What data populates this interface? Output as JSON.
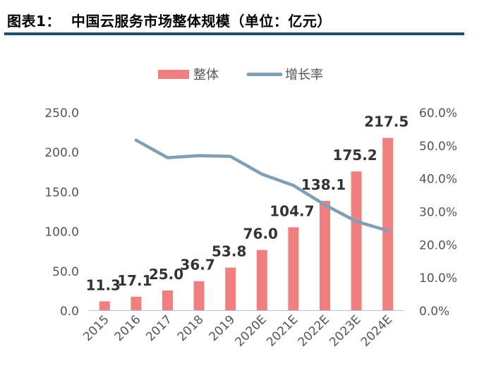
{
  "header": {
    "title": "图表1：  中国云服务市场整体规模（单位：亿元）"
  },
  "chart_data": {
    "type": "bar",
    "categories": [
      "2015",
      "2016",
      "2017",
      "2018",
      "2019",
      "2020E",
      "2021E",
      "2022E",
      "2023E",
      "2024E"
    ],
    "series": [
      {
        "name": "整体",
        "type": "bar",
        "axis": "left",
        "color": "#f08080",
        "values": [
          11.3,
          17.1,
          25.0,
          36.7,
          53.8,
          76.0,
          104.7,
          138.1,
          175.2,
          217.5
        ],
        "labels": [
          "11.3",
          "17.1",
          "25.0",
          "36.7",
          "53.8",
          "76.0",
          "104.7",
          "138.1",
          "175.2",
          "217.5"
        ]
      },
      {
        "name": "增长率",
        "type": "line",
        "axis": "right",
        "color": "#7f9fb4",
        "values": [
          null,
          51.5,
          46.2,
          46.8,
          46.6,
          41.2,
          37.8,
          31.9,
          26.9,
          24.1
        ]
      }
    ],
    "y_left": {
      "ylim": [
        0,
        250
      ],
      "ticks": [
        0,
        50,
        100,
        150,
        200,
        250
      ],
      "tick_labels": [
        "0.0",
        "50.0",
        "100.0",
        "150.0",
        "200.0",
        "250.0"
      ]
    },
    "y_right": {
      "ylim": [
        0,
        60
      ],
      "ticks": [
        0,
        10,
        20,
        30,
        40,
        50,
        60
      ],
      "tick_labels": [
        "0.0%",
        "10.0%",
        "20.0%",
        "30.0%",
        "40.0%",
        "50.0%",
        "60.0%"
      ]
    },
    "legend": {
      "placement": "top-center"
    },
    "grid": false,
    "colors": {
      "bar": "#f08080",
      "line": "#7f9fb4",
      "title_rule": "#1f4e6b"
    }
  }
}
